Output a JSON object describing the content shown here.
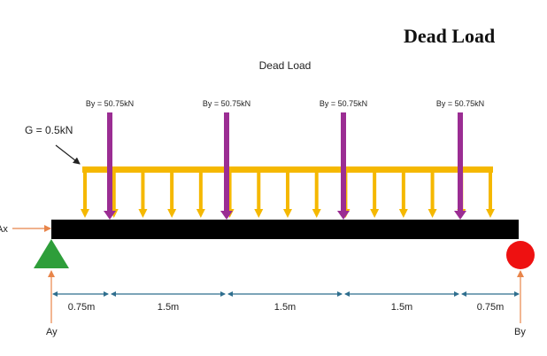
{
  "page_heading": "Dead Load",
  "diagram": {
    "title": "Dead Load",
    "distributed_load_label": "G = 0.5kN",
    "point_loads": [
      {
        "label": "By = 50.75kN"
      },
      {
        "label": "By = 50.75kN"
      },
      {
        "label": "By = 50.75kN"
      },
      {
        "label": "By = 50.75kN"
      }
    ],
    "reactions": {
      "horizontal": "Ax",
      "left_vertical": "Ay",
      "right_vertical": "By"
    },
    "spans": [
      "0.75m",
      "1.5m",
      "1.5m",
      "1.5m",
      "0.75m"
    ],
    "colors": {
      "beam": "#000000",
      "distributed_load": "#F5B800",
      "point_load": "#9B2D93",
      "pin_support": "#2E9E3A",
      "roller_support": "#EE1111",
      "reaction_arrow": "#E8854A",
      "dimension_line": "#2E6E8E"
    }
  }
}
